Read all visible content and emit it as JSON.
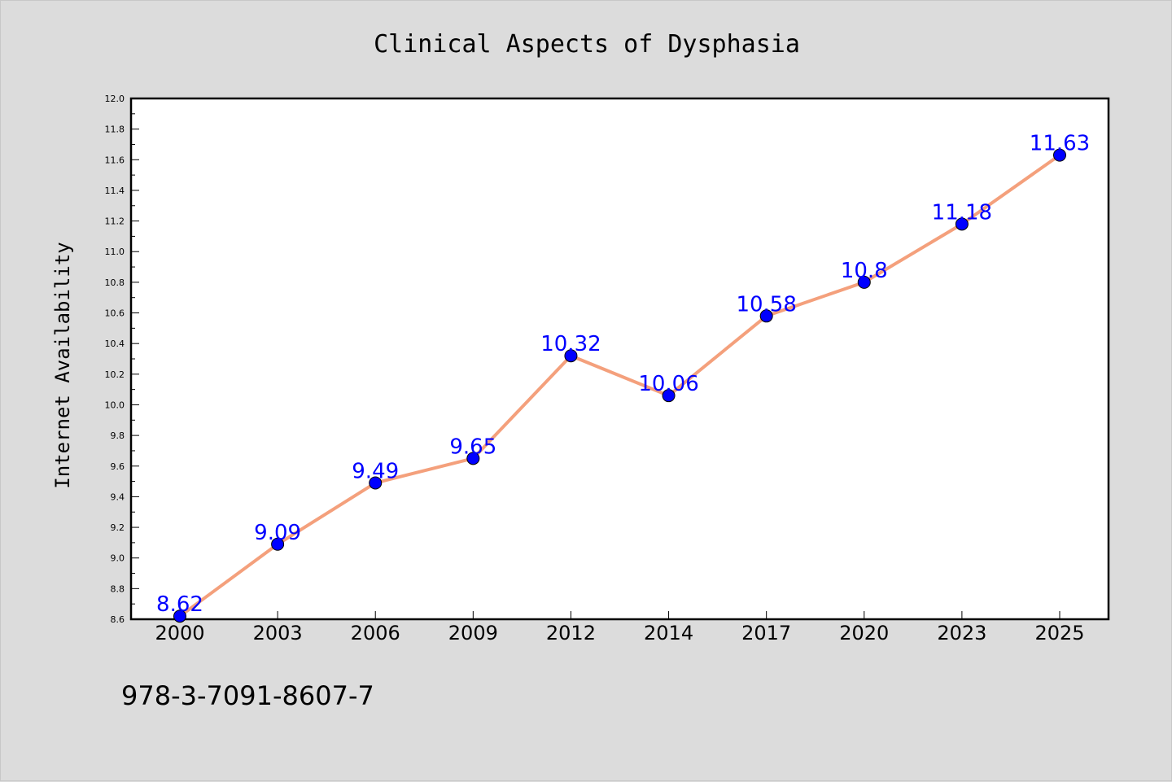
{
  "chart_data": {
    "type": "line",
    "title": "Clinical Aspects of Dysphasia",
    "xlabel": "",
    "ylabel": "Internet Availability",
    "categories": [
      "2000",
      "2003",
      "2006",
      "2009",
      "2012",
      "2014",
      "2017",
      "2020",
      "2023",
      "2025"
    ],
    "series": [
      {
        "values": [
          8.62,
          9.09,
          9.49,
          9.65,
          10.32,
          10.06,
          10.58,
          10.8,
          11.18,
          11.63
        ],
        "data_labels": [
          "8.62",
          "9.09",
          "9.49",
          "9.65",
          "10.32",
          "10.06",
          "10.58",
          "10.8",
          "11.18",
          "11.63"
        ]
      }
    ],
    "ylim": [
      8.6,
      12.0
    ],
    "yticks": [
      "8.6",
      "8.8",
      "9.0",
      "9.2",
      "9.4",
      "9.6",
      "9.8",
      "10.0",
      "10.2",
      "10.4",
      "10.6",
      "10.8",
      "11.0",
      "11.2",
      "11.4",
      "11.6",
      "11.8",
      "12.0"
    ],
    "grid": false,
    "legend": "none",
    "colors": {
      "line": "#f4a07c",
      "marker": "#0000ff",
      "label": "#0000ff",
      "background": "#dcdcdc",
      "plot_area": "#ffffff"
    }
  },
  "footer": {
    "code": "978-3-7091-8607-7"
  }
}
